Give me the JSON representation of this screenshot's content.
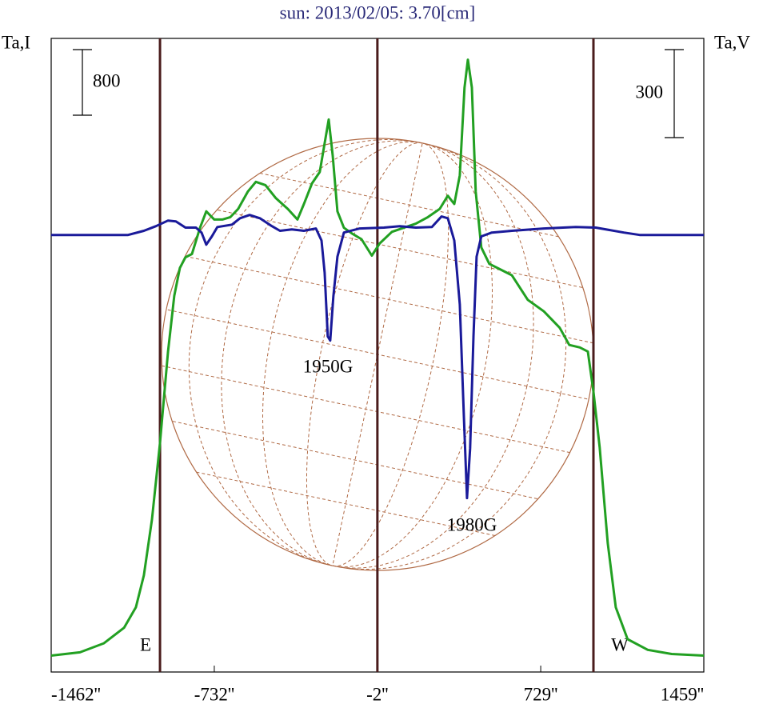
{
  "chart_data": {
    "type": "line",
    "title": "sun: 2013/02/05: 3.70[cm]",
    "y_label": "Ta,I",
    "y2_label": "Ta,V",
    "y_scale_bar": 800,
    "y2_scale_bar": 300,
    "xlim": [
      -1462,
      1459
    ],
    "xticks": [
      {
        "value": -1462,
        "label": "-1462''"
      },
      {
        "value": -732,
        "label": "-732''"
      },
      {
        "value": -2,
        "label": "-2''"
      },
      {
        "value": 729,
        "label": "729''"
      },
      {
        "value": 1459,
        "label": "1459''"
      }
    ],
    "ylim": [
      -200,
      7530
    ],
    "y2lim": [
      -1490,
      670
    ],
    "vlines": [
      -975,
      -2,
      965
    ],
    "limb_labels": [
      "E",
      "W"
    ],
    "annotations": [
      "1950G",
      "1980G"
    ],
    "series": [
      {
        "color": "#22a022",
        "x": [
          -1462,
          -1333,
          -1226,
          -1136,
          -1083,
          -1047,
          -1011,
          -975,
          -939,
          -911,
          -886,
          -861,
          -832,
          -796,
          -768,
          -732,
          -696,
          -660,
          -625,
          -582,
          -546,
          -503,
          -456,
          -403,
          -360,
          -331,
          -295,
          -260,
          -238,
          -220,
          -202,
          -181,
          -152,
          -116,
          -73,
          -27,
          9,
          63,
          116,
          170,
          224,
          277,
          313,
          342,
          367,
          388,
          403,
          421,
          438,
          463,
          499,
          564,
          600,
          671,
          743,
          814,
          857,
          904,
          940,
          965,
          993,
          1029,
          1065,
          1118,
          1208,
          1315,
          1459
        ],
        "values": [
          0,
          40,
          150,
          340,
          590,
          980,
          1660,
          2590,
          3710,
          4390,
          4730,
          4860,
          4900,
          5220,
          5420,
          5320,
          5320,
          5350,
          5450,
          5660,
          5780,
          5740,
          5580,
          5450,
          5320,
          5510,
          5760,
          5900,
          6250,
          6540,
          6100,
          5420,
          5220,
          5150,
          5080,
          4880,
          5030,
          5170,
          5220,
          5270,
          5350,
          5450,
          5610,
          5510,
          5860,
          6930,
          7270,
          6930,
          5660,
          4980,
          4780,
          4690,
          4640,
          4340,
          4200,
          4000,
          3790,
          3760,
          3710,
          3220,
          2540,
          1370,
          590,
          200,
          70,
          20,
          0
        ]
      },
      {
        "color": "#1a1a9a",
        "axis": "y2",
        "x": [
          -1462,
          -1118,
          -1047,
          -993,
          -939,
          -904,
          -861,
          -814,
          -789,
          -768,
          -743,
          -718,
          -653,
          -617,
          -574,
          -528,
          -474,
          -438,
          -385,
          -331,
          -277,
          -252,
          -238,
          -224,
          -213,
          -199,
          -181,
          -152,
          -81,
          27,
          98,
          170,
          242,
          285,
          313,
          342,
          367,
          385,
          399,
          413,
          428,
          442,
          463,
          510,
          600,
          743,
          886,
          975,
          1101,
          1172,
          1459
        ],
        "values": [
          0,
          0,
          14,
          30,
          49,
          46,
          25,
          25,
          8,
          -33,
          -5,
          27,
          35,
          57,
          68,
          57,
          30,
          14,
          19,
          14,
          22,
          -19,
          -128,
          -346,
          -360,
          -210,
          -74,
          8,
          22,
          25,
          30,
          25,
          27,
          63,
          57,
          -19,
          -237,
          -619,
          -897,
          -728,
          -346,
          -74,
          -5,
          8,
          14,
          22,
          27,
          25,
          8,
          0,
          0
        ]
      }
    ]
  }
}
